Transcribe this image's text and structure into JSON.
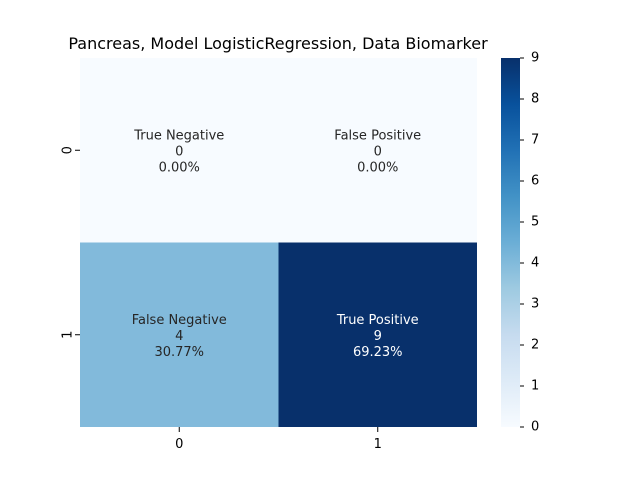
{
  "chart_data": {
    "type": "heatmap",
    "title": "Pancreas, Model LogisticRegression, Data Biomarker",
    "xlabel": "",
    "ylabel": "",
    "x_categories": [
      "0",
      "1"
    ],
    "y_categories": [
      "0",
      "1"
    ],
    "values": [
      [
        0,
        0
      ],
      [
        4,
        9
      ]
    ],
    "cell_labels": [
      [
        [
          "True Negative",
          "0",
          "0.00%"
        ],
        [
          "False Positive",
          "0",
          "0.00%"
        ]
      ],
      [
        [
          "False Negative",
          "4",
          "30.77%"
        ],
        [
          "True Positive",
          "9",
          "69.23%"
        ]
      ]
    ],
    "colorbar": {
      "colormap": "Blues",
      "min": 0,
      "max": 9,
      "ticks": [
        "0",
        "1",
        "2",
        "3",
        "4",
        "5",
        "6",
        "7",
        "8",
        "9"
      ],
      "low_color": "#f7fbff",
      "high_color": "#08306b"
    },
    "grid": false
  }
}
